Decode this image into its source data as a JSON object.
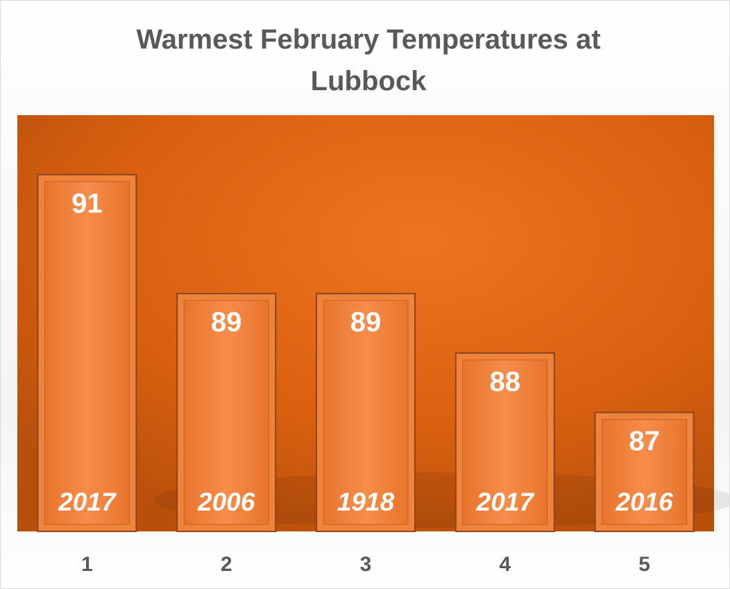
{
  "chart_data": {
    "type": "bar",
    "title": "Warmest February Temperatures at Lubbock",
    "categories": [
      "1",
      "2",
      "3",
      "4",
      "5"
    ],
    "values": [
      91,
      89,
      89,
      88,
      87
    ],
    "bar_labels": [
      "2017",
      "2006",
      "1918",
      "2017",
      "2016"
    ],
    "color": "#f0833a",
    "ylim": [
      85,
      92
    ]
  }
}
